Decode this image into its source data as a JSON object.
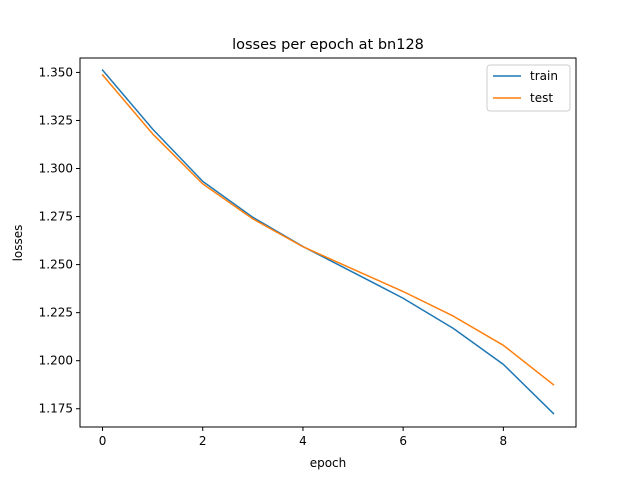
{
  "chart_data": {
    "type": "line",
    "title": "losses per epoch at bn128",
    "xlabel": "epoch",
    "ylabel": "losses",
    "x": [
      0,
      1,
      2,
      3,
      4,
      5,
      6,
      7,
      8,
      9
    ],
    "xlim": [
      -0.45,
      9.45
    ],
    "ylim": [
      1.1655,
      1.3575
    ],
    "xticks": [
      0,
      2,
      4,
      6,
      8
    ],
    "xtick_labels": [
      "0",
      "2",
      "4",
      "6",
      "8"
    ],
    "yticks": [
      1.175,
      1.2,
      1.225,
      1.25,
      1.275,
      1.3,
      1.325,
      1.35
    ],
    "ytick_labels": [
      "1.175",
      "1.200",
      "1.225",
      "1.250",
      "1.275",
      "1.300",
      "1.325",
      "1.350"
    ],
    "grid": false,
    "legend_position": "top-right",
    "series": [
      {
        "name": "train",
        "color": "#1f77b4",
        "values": [
          1.3512,
          1.3205,
          1.2933,
          1.2746,
          1.2594,
          1.246,
          1.2325,
          1.2168,
          1.1981,
          1.1725
        ]
      },
      {
        "name": "test",
        "color": "#ff7f0e",
        "values": [
          1.3487,
          1.318,
          1.292,
          1.2738,
          1.2593,
          1.2476,
          1.236,
          1.2232,
          1.208,
          1.1875
        ]
      }
    ]
  }
}
